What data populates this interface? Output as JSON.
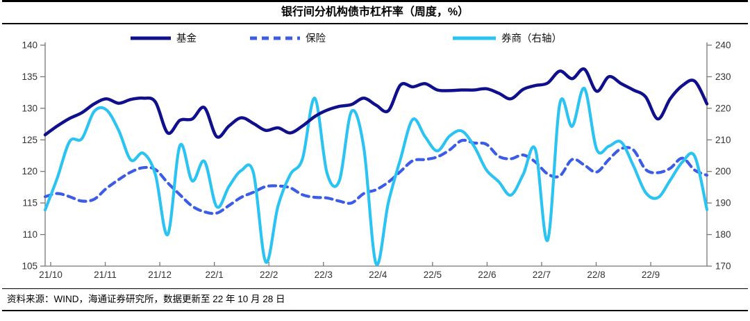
{
  "title": "银行间分机构债市杠杆率（周度，%）",
  "source_note": "资料来源：WIND，海通证券研究所，数据更新至 22 年 10 月 28 日",
  "colors": {
    "fund": "#10108c",
    "insurance": "#3c5ce6",
    "broker": "#2bc3f2",
    "axis": "#777777",
    "tick_text": "#333333"
  },
  "legend": [
    {
      "label": "基金",
      "style": "solid",
      "color": "#10108c"
    },
    {
      "label": "保险",
      "style": "dashed",
      "color": "#3c5ce6"
    },
    {
      "label": "券商（右轴）",
      "style": "solid",
      "color": "#2bc3f2"
    }
  ],
  "chart_data": {
    "type": "line",
    "title": "银行间分机构债市杠杆率（周度，%）",
    "x_tick_labels": [
      "21/10",
      "21/11",
      "21/12",
      "22/1",
      "22/2",
      "22/3",
      "22/4",
      "22/5",
      "22/6",
      "22/7",
      "22/8",
      "22/9"
    ],
    "x_unit": "week",
    "grid": false,
    "left_axis": {
      "min": 105,
      "max": 140,
      "step": 5,
      "ticks": [
        140,
        135,
        130,
        125,
        120,
        115,
        110,
        105
      ]
    },
    "right_axis": {
      "min": 170,
      "max": 240,
      "step": 10,
      "ticks": [
        240,
        230,
        220,
        210,
        200,
        190,
        180,
        170
      ]
    },
    "series": [
      {
        "name": "基金",
        "axis": "left",
        "color": "#10108c",
        "dash": null,
        "width": 4.5,
        "values": [
          125.8,
          127.2,
          128.4,
          129.3,
          130.7,
          131.5,
          130.8,
          131.4,
          131.6,
          131.0,
          126.1,
          128.1,
          128.3,
          130.1,
          125.5,
          127.2,
          128.5,
          127.6,
          126.5,
          126.9,
          126.1,
          127.2,
          128.7,
          129.7,
          130.3,
          130.6,
          131.6,
          130.5,
          129.6,
          133.7,
          133.4,
          133.9,
          132.9,
          132.8,
          132.9,
          132.9,
          133.1,
          132.4,
          131.5,
          133.0,
          133.6,
          134.0,
          135.9,
          134.7,
          136.2,
          132.7,
          135.0,
          133.9,
          132.9,
          131.8,
          128.3,
          131.5,
          133.6,
          134.3,
          130.7
        ]
      },
      {
        "name": "保险",
        "axis": "left",
        "color": "#3c5ce6",
        "dash": [
          10,
          7
        ],
        "width": 4.2,
        "values": [
          116.0,
          116.5,
          116.0,
          115.3,
          115.6,
          117.3,
          118.7,
          119.9,
          120.6,
          120.3,
          118.2,
          116.3,
          114.5,
          113.6,
          113.4,
          114.6,
          115.9,
          116.7,
          117.6,
          117.7,
          117.4,
          116.3,
          115.9,
          115.8,
          115.3,
          115.0,
          116.5,
          117.1,
          118.3,
          120.0,
          121.7,
          121.9,
          122.3,
          123.4,
          124.9,
          124.5,
          124.3,
          122.4,
          122.0,
          122.6,
          121.5,
          119.6,
          119.3,
          121.9,
          121.0,
          119.9,
          121.9,
          123.6,
          123.4,
          120.3,
          119.8,
          120.5,
          122.1,
          120.2,
          119.4
        ]
      },
      {
        "name": "券商（右轴）",
        "axis": "right",
        "color": "#2bc3f2",
        "dash": null,
        "width": 4.2,
        "values": [
          187.8,
          198.0,
          209.5,
          210.4,
          219.0,
          219.5,
          213.0,
          203.6,
          205.8,
          199.0,
          180.0,
          208.2,
          197.0,
          203.2,
          188.8,
          195.2,
          200.3,
          199.5,
          171.3,
          189.0,
          199.0,
          204.0,
          223.2,
          199.5,
          197.0,
          219.0,
          207.5,
          170.8,
          190.0,
          204.0,
          216.5,
          211.0,
          206.5,
          211.2,
          212.8,
          208.0,
          200.5,
          196.8,
          192.5,
          199.0,
          207.0,
          178.2,
          221.5,
          214.3,
          226.3,
          207.0,
          208.0,
          209.3,
          201.8,
          193.3,
          191.7,
          197.2,
          203.0,
          204.8,
          187.9
        ]
      }
    ]
  }
}
